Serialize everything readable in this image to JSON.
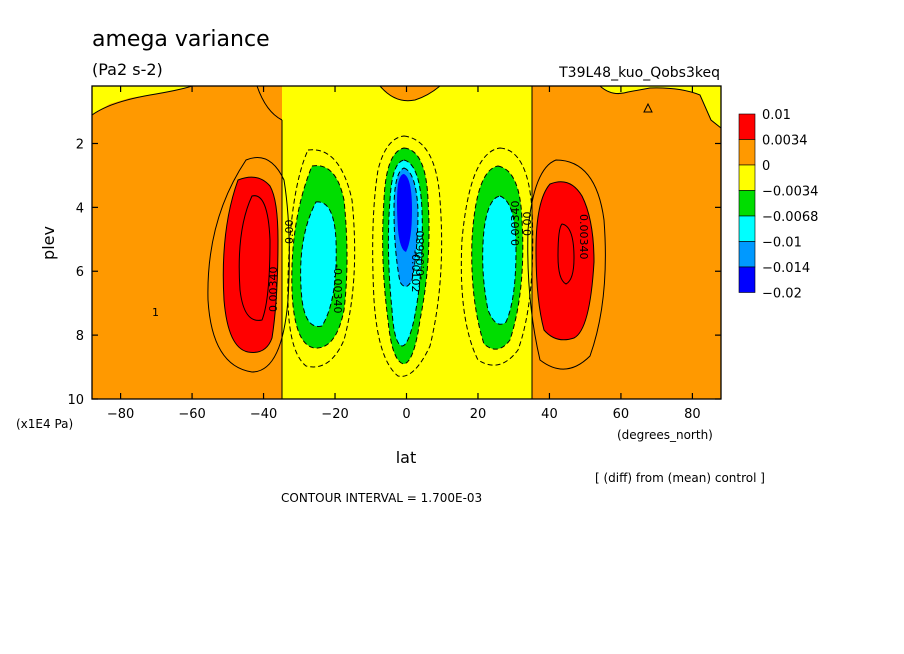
{
  "figure": {
    "title": "amega variance",
    "units": "(Pa2 s-2)",
    "run_label": "T39L48_kuo_Qobs3keq",
    "diff_note": "[ (diff) from (mean) control ]",
    "contour_interval": "CONTOUR INTERVAL = 1.700E-03"
  },
  "chart_data": {
    "type": "heatmap",
    "xlabel": "lat",
    "ylabel": "plev",
    "x_unit_label": "(degrees_north)",
    "y_unit_label": "(x1E4 Pa)",
    "xlim": [
      -88,
      88
    ],
    "ylim": [
      10,
      0.2
    ],
    "x_ticks": [
      -80,
      -60,
      -40,
      -20,
      0,
      20,
      40,
      60,
      80
    ],
    "y_ticks": [
      2,
      4,
      6,
      8,
      10
    ],
    "legend": {
      "placement": "right",
      "levels": [
        "0.01",
        "0.0034",
        "0",
        "-0.0034",
        "-0.0068",
        "-0.01",
        "-0.014",
        "-0.02"
      ],
      "colors": [
        "#ff0000",
        "#ff9900",
        "#ffff00",
        "#00dd00",
        "#00ffff",
        "#0099ff",
        "#0000ff"
      ]
    },
    "contour_labels": [
      "0.00340",
      "0.00",
      "-0.00340",
      "-0.0102",
      "-0.00680",
      "0.00340",
      "0.00",
      "-0.00340",
      "0.00340",
      "1"
    ],
    "features": [
      {
        "name": "positive max SH",
        "lat_center": -45,
        "plev_center": 5.5,
        "value_range": [
          0.0034,
          0.01
        ]
      },
      {
        "name": "negative min SH",
        "lat_center": -25,
        "plev_center": 5.0,
        "value_range": [
          -0.01,
          -0.0034
        ]
      },
      {
        "name": "negative min equator",
        "lat_center": 0,
        "plev_center": 4.5,
        "value_range": [
          -0.02,
          -0.0034
        ]
      },
      {
        "name": "negative min NH",
        "lat_center": 25,
        "plev_center": 5.0,
        "value_range": [
          -0.01,
          -0.0034
        ]
      },
      {
        "name": "positive max NH",
        "lat_center": 45,
        "plev_center": 5.5,
        "value_range": [
          0.0034,
          0.01
        ]
      }
    ]
  }
}
